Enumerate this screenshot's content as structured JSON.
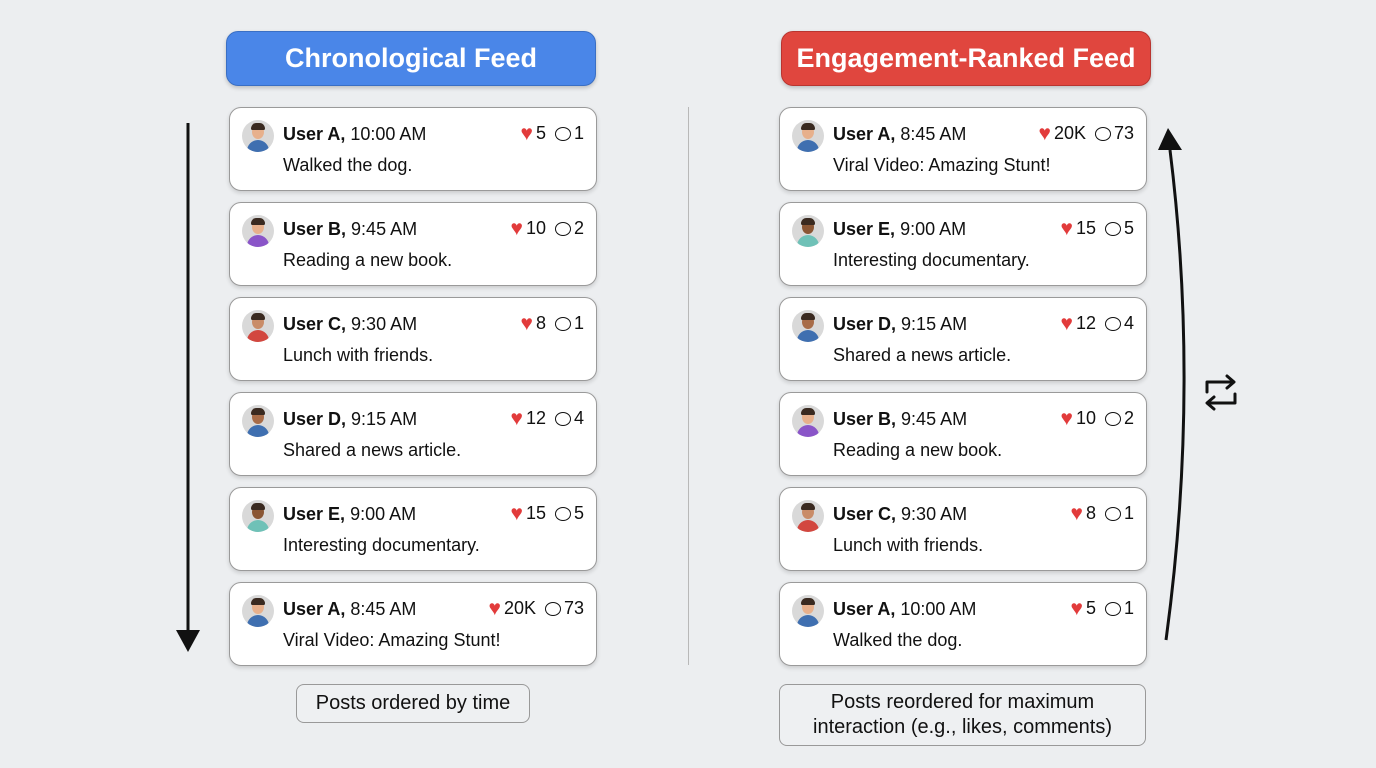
{
  "left": {
    "title": "Chronological Feed",
    "caption": "Posts ordered by time",
    "posts": [
      {
        "user": "User A,",
        "time": "10:00 AM",
        "text": "Walked the dog.",
        "likes": "5",
        "comments": "1",
        "avatar_color": "#3f6fb0",
        "skin": "#e7b08c"
      },
      {
        "user": "User B,",
        "time": "9:45 AM",
        "text": "Reading a new book.",
        "likes": "10",
        "comments": "2",
        "avatar_color": "#8a55c8",
        "skin": "#e7b08c"
      },
      {
        "user": "User C,",
        "time": "9:30 AM",
        "text": "Lunch with friends.",
        "likes": "8",
        "comments": "1",
        "avatar_color": "#d2473f",
        "skin": "#c98c68"
      },
      {
        "user": "User D,",
        "time": "9:15 AM",
        "text": "Shared a news article.",
        "likes": "12",
        "comments": "4",
        "avatar_color": "#3f6fb0",
        "skin": "#a86c48"
      },
      {
        "user": "User E,",
        "time": "9:00 AM",
        "text": "Interesting documentary.",
        "likes": "15",
        "comments": "5",
        "avatar_color": "#6fc1b7",
        "skin": "#8a5634"
      },
      {
        "user": "User A,",
        "time": "8:45 AM",
        "text": "Viral Video: Amazing Stunt!",
        "likes": "20K",
        "comments": "73",
        "avatar_color": "#3f6fb0",
        "skin": "#e7b08c"
      }
    ]
  },
  "right": {
    "title": "Engagement-Ranked Feed",
    "caption": "Posts reordered for maximum interaction (e.g., likes, comments)",
    "posts": [
      {
        "user": "User A,",
        "time": "8:45 AM",
        "text": "Viral Video: Amazing Stunt!",
        "likes": "20K",
        "comments": "73",
        "avatar_color": "#3f6fb0",
        "skin": "#e7b08c"
      },
      {
        "user": "User E,",
        "time": "9:00 AM",
        "text": "Interesting documentary.",
        "likes": "15",
        "comments": "5",
        "avatar_color": "#6fc1b7",
        "skin": "#8a5634"
      },
      {
        "user": "User D,",
        "time": "9:15 AM",
        "text": "Shared a news article.",
        "likes": "12",
        "comments": "4",
        "avatar_color": "#3f6fb0",
        "skin": "#a86c48"
      },
      {
        "user": "User B,",
        "time": "9:45 AM",
        "text": "Reading a new book.",
        "likes": "10",
        "comments": "2",
        "avatar_color": "#8a55c8",
        "skin": "#e7b08c"
      },
      {
        "user": "User C,",
        "time": "9:30 AM",
        "text": "Lunch with friends.",
        "likes": "8",
        "comments": "1",
        "avatar_color": "#d2473f",
        "skin": "#c98c68"
      },
      {
        "user": "User A,",
        "time": "10:00 AM",
        "text": "Walked the dog.",
        "likes": "5",
        "comments": "1",
        "avatar_color": "#3f6fb0",
        "skin": "#e7b08c"
      }
    ]
  },
  "icons": {
    "heart": "♥",
    "reorder": "repeat-icon"
  },
  "colors": {
    "chronological": "#4a86e8",
    "engagement": "#e0463e",
    "like": "#e23b3b"
  }
}
